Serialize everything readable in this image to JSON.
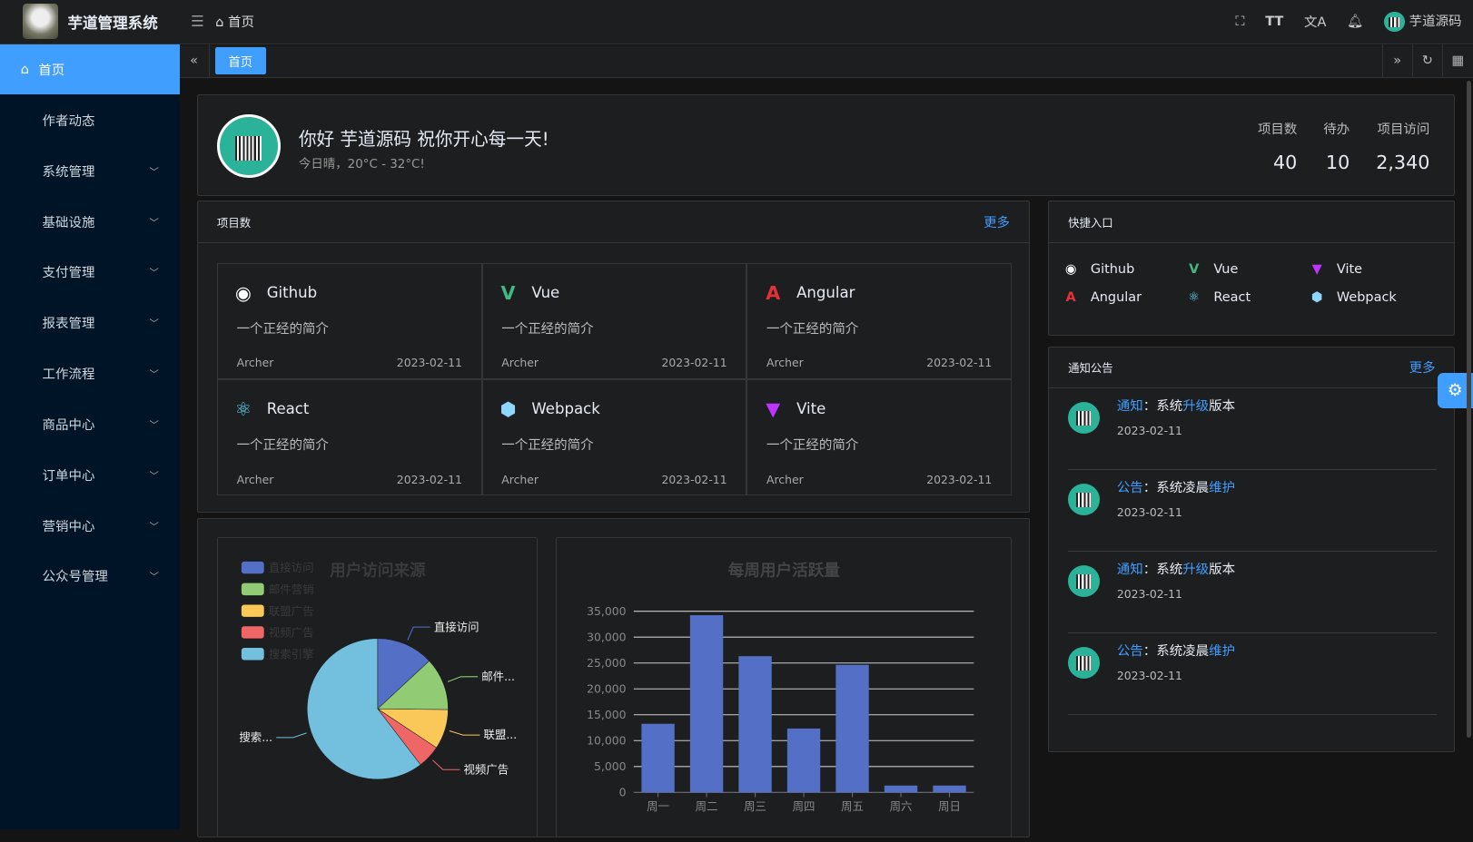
{
  "header": {
    "app_title": "芋道管理系统",
    "breadcrumb": "首页",
    "user": "芋道源码"
  },
  "sidebar": {
    "items": [
      {
        "label": "首页",
        "active": true
      },
      {
        "label": "作者动态"
      },
      {
        "label": "系统管理",
        "expandable": true
      },
      {
        "label": "基础设施",
        "expandable": true
      },
      {
        "label": "支付管理",
        "expandable": true
      },
      {
        "label": "报表管理",
        "expandable": true
      },
      {
        "label": "工作流程",
        "expandable": true
      },
      {
        "label": "商品中心",
        "expandable": true
      },
      {
        "label": "订单中心",
        "expandable": true
      },
      {
        "label": "营销中心",
        "expandable": true
      },
      {
        "label": "公众号管理",
        "expandable": true
      }
    ]
  },
  "tabs": {
    "active": "首页"
  },
  "welcome": {
    "greeting": "你好 芋道源码 祝你开心每一天!",
    "weather": "今日晴，20°C - 32°C!",
    "stats": [
      {
        "label": "项目数",
        "value": "40"
      },
      {
        "label": "待办",
        "value": "10"
      },
      {
        "label": "项目访问",
        "value": "2,340"
      }
    ]
  },
  "projects": {
    "title": "项目数",
    "more": "更多",
    "items": [
      {
        "name": "Github",
        "desc": "一个正经的简介",
        "author": "Archer",
        "date": "2023-02-11",
        "icon": "github-icon",
        "color": "#ffffff"
      },
      {
        "name": "Vue",
        "desc": "一个正经的简介",
        "author": "Archer",
        "date": "2023-02-11",
        "icon": "vue-icon",
        "color": "#42b883"
      },
      {
        "name": "Angular",
        "desc": "一个正经的简介",
        "author": "Archer",
        "date": "2023-02-11",
        "icon": "angular-icon",
        "color": "#e23237"
      },
      {
        "name": "React",
        "desc": "一个正经的简介",
        "author": "Archer",
        "date": "2023-02-11",
        "icon": "react-icon",
        "color": "#61dafb"
      },
      {
        "name": "Webpack",
        "desc": "一个正经的简介",
        "author": "Archer",
        "date": "2023-02-11",
        "icon": "webpack-icon",
        "color": "#8ed6fb"
      },
      {
        "name": "Vite",
        "desc": "一个正经的简介",
        "author": "Archer",
        "date": "2023-02-11",
        "icon": "vite-icon",
        "color": "#bd34fe"
      }
    ]
  },
  "shortcuts": {
    "title": "快捷入口",
    "items": [
      {
        "name": "Github",
        "icon": "github-icon"
      },
      {
        "name": "Vue",
        "icon": "vue-icon"
      },
      {
        "name": "Vite",
        "icon": "vite-icon"
      },
      {
        "name": "Angular",
        "icon": "angular-icon"
      },
      {
        "name": "React",
        "icon": "react-icon"
      },
      {
        "name": "Webpack",
        "icon": "webpack-icon"
      }
    ]
  },
  "notices": {
    "title": "通知公告",
    "more": "更多",
    "items": [
      {
        "type": "通知",
        "sep": "：",
        "pre": "系统",
        "hl": "升级",
        "post": "版本",
        "date": "2023-02-11"
      },
      {
        "type": "公告",
        "sep": "：",
        "pre": "系统凌晨",
        "hl": "维护",
        "post": "",
        "date": "2023-02-11"
      },
      {
        "type": "通知",
        "sep": "：",
        "pre": "系统",
        "hl": "升级",
        "post": "版本",
        "date": "2023-02-11"
      },
      {
        "type": "公告",
        "sep": "：",
        "pre": "系统凌晨",
        "hl": "维护",
        "post": "",
        "date": "2023-02-11"
      }
    ]
  },
  "chart_data": [
    {
      "type": "pie",
      "title": "用户访问来源",
      "legend_position": "top-left",
      "categories": [
        "直接访问",
        "邮件营销",
        "联盟广告",
        "视频广告",
        "搜索引擎"
      ],
      "values": [
        335,
        310,
        234,
        135,
        1548
      ],
      "colors": [
        "#5470c6",
        "#91cc75",
        "#fac858",
        "#ee6666",
        "#73c0de"
      ],
      "slice_labels": [
        "直接访问",
        "邮件...",
        "联盟...",
        "视频广告",
        "搜索..."
      ]
    },
    {
      "type": "bar",
      "title": "每周用户活跃量",
      "categories": [
        "周一",
        "周二",
        "周三",
        "周四",
        "周五",
        "周六",
        "周日"
      ],
      "values": [
        13253,
        34235,
        26321,
        12340,
        24643,
        1322,
        1324
      ],
      "ylim": [
        0,
        35000
      ],
      "yticks": [
        "0",
        "5,000",
        "10,000",
        "15,000",
        "20,000",
        "25,000",
        "30,000",
        "35,000"
      ],
      "color": "#5470c6",
      "grid": true
    }
  ]
}
